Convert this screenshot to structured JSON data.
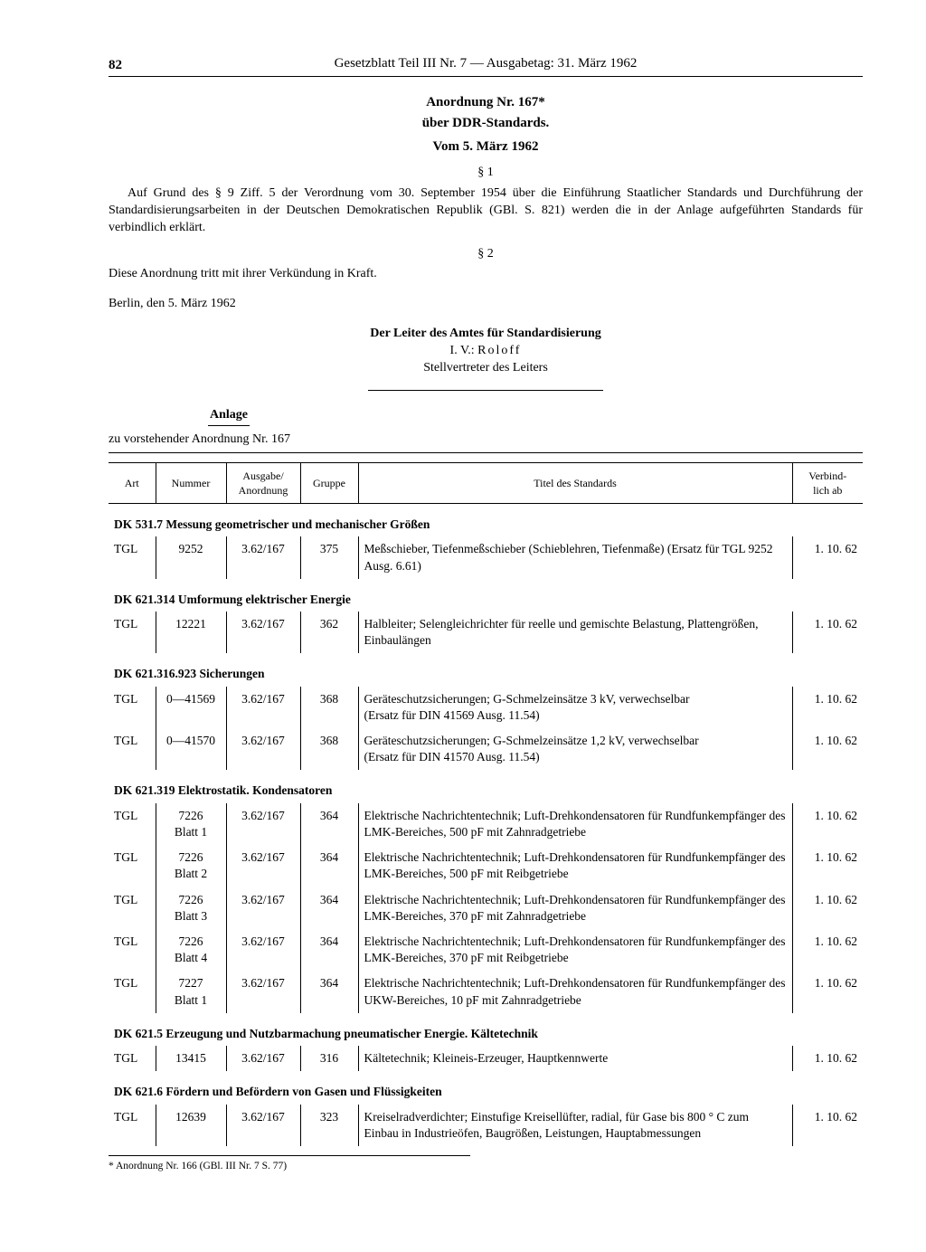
{
  "page_number": "82",
  "running_head": "Gesetzblatt Teil III Nr. 7 — Ausgabetag: 31. März 1962",
  "title_main": "Anordnung Nr. 167*",
  "title_sub": "über DDR-Standards.",
  "title_date": "Vom 5. März 1962",
  "section1_sym": "§ 1",
  "para1": "Auf Grund des § 9 Ziff. 5 der Verordnung vom 30. September 1954 über die Einführung Staatlicher Standards und Durchführung der Standardisierungsarbeiten in der Deutschen Demokratischen Republik (GBl. S. 821) werden die in der Anlage aufgeführten Standards für verbindlich erklärt.",
  "section2_sym": "§ 2",
  "para2": "Diese Anordnung tritt mit ihrer Verkündung in Kraft.",
  "place_date": "Berlin, den 5. März 1962",
  "sig_head": "Der Leiter des Amtes für Standardisierung",
  "sig_iv": "I. V.: ",
  "sig_name": "Roloff",
  "sig_role": "Stellvertreter des Leiters",
  "anlage_head": "Anlage",
  "anlage_sub": "zu vorstehender Anordnung Nr. 167",
  "th": {
    "art": "Art",
    "nummer": "Nummer",
    "ausgabe_line1": "Ausgabe/",
    "ausgabe_line2": "Anordnung",
    "gruppe": "Gruppe",
    "titel": "Titel des Standards",
    "verbind_line1": "Verbind-",
    "verbind_line2": "lich ab"
  },
  "groups": [
    {
      "heading": "DK 531.7 Messung geometrischer und mechanischer Größen",
      "rows": [
        {
          "art": "TGL",
          "num": "9252",
          "aus": "3.62/167",
          "grp": "375",
          "tit": "Meßschieber, Tiefenmeßschieber (Schieblehren, Tiefenmaße) (Ersatz für TGL 9252 Ausg. 6.61)",
          "ver": "1. 10. 62"
        }
      ]
    },
    {
      "heading": "DK 621.314 Umformung elektrischer Energie",
      "rows": [
        {
          "art": "TGL",
          "num": "12221",
          "aus": "3.62/167",
          "grp": "362",
          "tit": "Halbleiter; Selengleichrichter für reelle und gemischte Belastung, Plattengrößen, Einbaulängen",
          "ver": "1. 10. 62"
        }
      ]
    },
    {
      "heading": "DK 621.316.923 Sicherungen",
      "rows": [
        {
          "art": "TGL",
          "num": "0—41569",
          "aus": "3.62/167",
          "grp": "368",
          "tit": "Geräteschutzsicherungen; G-Schmelzeinsätze 3 kV, verwechselbar\n(Ersatz für DIN 41569 Ausg. 11.54)",
          "ver": "1. 10. 62"
        },
        {
          "art": "TGL",
          "num": "0—41570",
          "aus": "3.62/167",
          "grp": "368",
          "tit": "Geräteschutzsicherungen; G-Schmelzeinsätze 1,2 kV, verwechselbar\n(Ersatz für DIN 41570 Ausg. 11.54)",
          "ver": "1. 10. 62"
        }
      ]
    },
    {
      "heading": "DK 621.319 Elektrostatik. Kondensatoren",
      "rows": [
        {
          "art": "TGL",
          "num": "7226\nBlatt 1",
          "aus": "3.62/167",
          "grp": "364",
          "tit": "Elektrische Nachrichtentechnik; Luft-Drehkondensatoren für Rundfunkempfänger des LMK-Bereiches, 500 pF mit Zahnradgetriebe",
          "ver": "1. 10. 62"
        },
        {
          "art": "TGL",
          "num": "7226\nBlatt 2",
          "aus": "3.62/167",
          "grp": "364",
          "tit": "Elektrische Nachrichtentechnik; Luft-Drehkondensatoren für Rundfunkempfänger des LMK-Bereiches, 500 pF mit Reibgetriebe",
          "ver": "1. 10. 62"
        },
        {
          "art": "TGL",
          "num": "7226\nBlatt 3",
          "aus": "3.62/167",
          "grp": "364",
          "tit": "Elektrische Nachrichtentechnik; Luft-Drehkondensatoren für Rundfunkempfänger des LMK-Bereiches, 370 pF mit Zahnradgetriebe",
          "ver": "1. 10. 62"
        },
        {
          "art": "TGL",
          "num": "7226\nBlatt 4",
          "aus": "3.62/167",
          "grp": "364",
          "tit": "Elektrische Nachrichtentechnik; Luft-Drehkondensatoren für Rundfunkempfänger des LMK-Bereiches, 370 pF mit Reibgetriebe",
          "ver": "1. 10. 62"
        },
        {
          "art": "TGL",
          "num": "7227\nBlatt 1",
          "aus": "3.62/167",
          "grp": "364",
          "tit": "Elektrische Nachrichtentechnik; Luft-Drehkondensatoren für Rundfunkempfänger des UKW-Bereiches, 10 pF mit Zahnradgetriebe",
          "ver": "1. 10. 62"
        }
      ]
    },
    {
      "heading": "DK 621.5 Erzeugung und Nutzbarmachung pneumatischer Energie. Kältetechnik",
      "rows": [
        {
          "art": "TGL",
          "num": "13415",
          "aus": "3.62/167",
          "grp": "316",
          "tit": "Kältetechnik; Kleineis-Erzeuger, Hauptkennwerte",
          "ver": "1. 10. 62"
        }
      ]
    },
    {
      "heading": "DK 621.6 Fördern und Befördern von Gasen und Flüssigkeiten",
      "rows": [
        {
          "art": "TGL",
          "num": "12639",
          "aus": "3.62/167",
          "grp": "323",
          "tit": "Kreiselradverdichter; Einstufige Kreisellüfter, radial, für Gase bis 800 ° C zum Einbau in Industrieöfen, Baugrößen, Leistungen, Hauptabmessungen",
          "ver": "1. 10. 62"
        }
      ]
    }
  ],
  "footnote": "* Anordnung Nr. 166 (GBl. III Nr. 7 S. 77)"
}
